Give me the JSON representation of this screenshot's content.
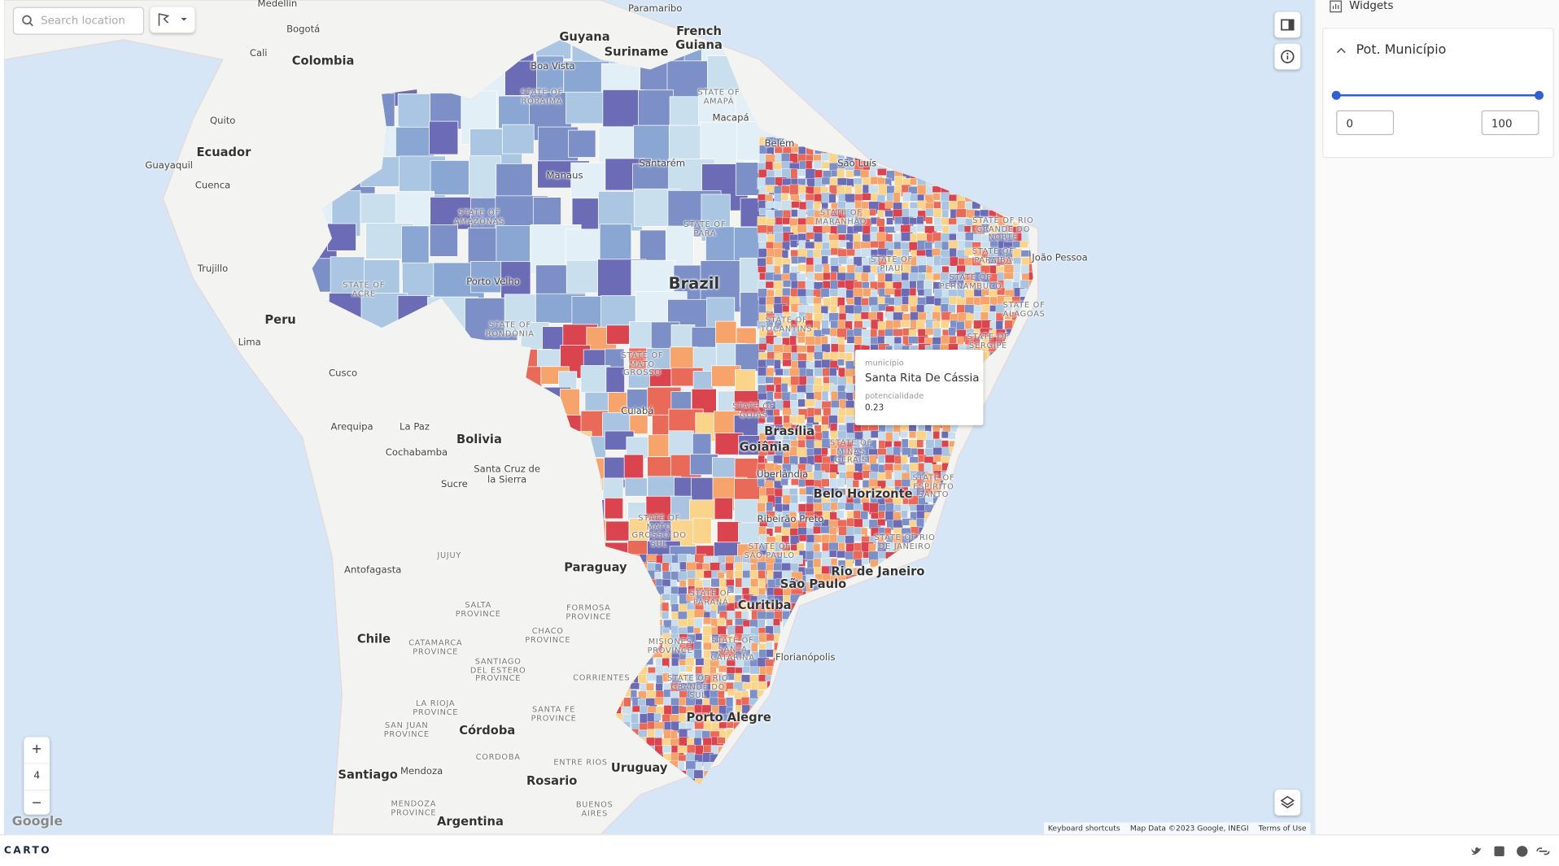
{
  "search": {
    "placeholder": "Search location"
  },
  "zoom": {
    "in": "+",
    "level": "4",
    "out": "−"
  },
  "map": {
    "logo": "Google",
    "attribution": [
      "Keyboard shortcuts",
      "Map Data ©2023 Google, INEGI",
      "Terms of Use"
    ],
    "labels": [
      "Medellín",
      "Bogotá",
      "Cali",
      "Colombia",
      "Quito",
      "Ecuador",
      "Guayaquil",
      "Cuenca",
      "Trujillo",
      "Peru",
      "Lima",
      "Cusco",
      "Arequipa",
      "La Paz",
      "Bolivia",
      "Cochabamba",
      "Sucre",
      "Santa Cruz de la Sierra",
      "Paramaribo",
      "Guyana",
      "Suriname",
      "French Guiana",
      "Boa Vista",
      "Manaus",
      "Santarém",
      "Macapá",
      "Belém",
      "São Luís",
      "João Pessoa",
      "Porto Velho",
      "Brazil",
      "Cuiabá",
      "Brasília",
      "Goiânia",
      "Uberlândia",
      "Belo Horizonte",
      "Ribeirão Preto",
      "Rio de Janeiro",
      "São Paulo",
      "Curitiba",
      "Florianópolis",
      "Porto Alegre",
      "Paraguay",
      "Antofagasta",
      "Chile",
      "Córdoba",
      "Rosario",
      "Uruguay",
      "Santiago",
      "Mendoza",
      "Argentina",
      "STATE OF RORAIMA",
      "STATE OF AMAPÁ",
      "STATE OF AMAZONAS",
      "STATE OF PARÁ",
      "STATE OF ACRE",
      "STATE OF RONDÔNIA",
      "STATE OF MATO GROSSO",
      "STATE OF TOCANTINS",
      "STATE OF GOIÁS",
      "STATE OF MARANHÃO",
      "STATE OF PIAUÍ",
      "STATE OF RIO GRANDE DO NORTE",
      "STATE OF PARAÍBA",
      "STATE OF PERNAMBUCO",
      "STATE OF ALAGOAS",
      "STATE OF SERGIPE",
      "STATE OF MINAS GERAIS",
      "STATE OF ESPÍRITO SANTO",
      "STATE OF MATO GROSSO DO SUL",
      "STATE OF SÃO PAULO",
      "STATE OF RIO DE JANEIRO",
      "STATE OF PARANÁ",
      "STATE OF SANTA CATARINA",
      "STATE OF RIO GRANDE DO SUL",
      "JUJUY",
      "SALTA PROVINCE",
      "FORMOSA PROVINCE",
      "CHACO PROVINCE",
      "MISIONES PROVINCE",
      "CATAMARCA PROVINCE",
      "SANTIAGO DEL ESTERO PROVINCE",
      "CORRIENTES",
      "LA RIOJA PROVINCE",
      "SAN JUAN PROVINCE",
      "SANTA FE PROVINCE",
      "CORDOBA",
      "ENTRE RIOS",
      "MENDOZA PROVINCE",
      "BUENOS AIRES"
    ]
  },
  "tooltip": {
    "field_1": "município",
    "value_1": "Santa Rita De Cássia",
    "field_2": "potencialidade",
    "value_2": "0.23"
  },
  "sidebar": {
    "title": "Widgets",
    "widget": {
      "title": "Pot. Município",
      "min": 0,
      "max": 100
    }
  },
  "footer": {
    "brand": "CARTO"
  }
}
